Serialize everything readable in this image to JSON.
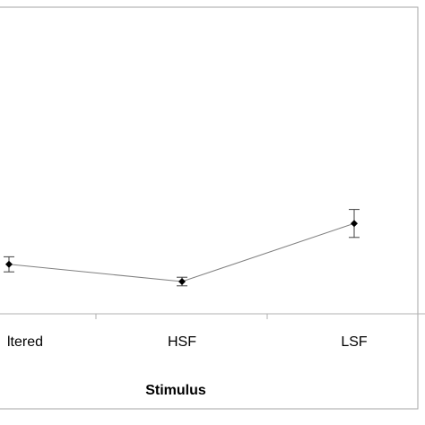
{
  "chart_data": {
    "type": "line",
    "title": "",
    "xlabel": "Stimulus",
    "ylabel": "",
    "categories": [
      "ltered",
      "HSF",
      "LSF"
    ],
    "series": [
      {
        "values": [
          2.3,
          1.5,
          4.2
        ],
        "error": [
          0.35,
          0.2,
          0.65
        ]
      }
    ],
    "ylim": [
      0,
      11
    ],
    "grid": false,
    "legend": "none",
    "colors": {
      "line": "#808080",
      "marker": "#000000",
      "frame": "#a6a6a6"
    }
  }
}
